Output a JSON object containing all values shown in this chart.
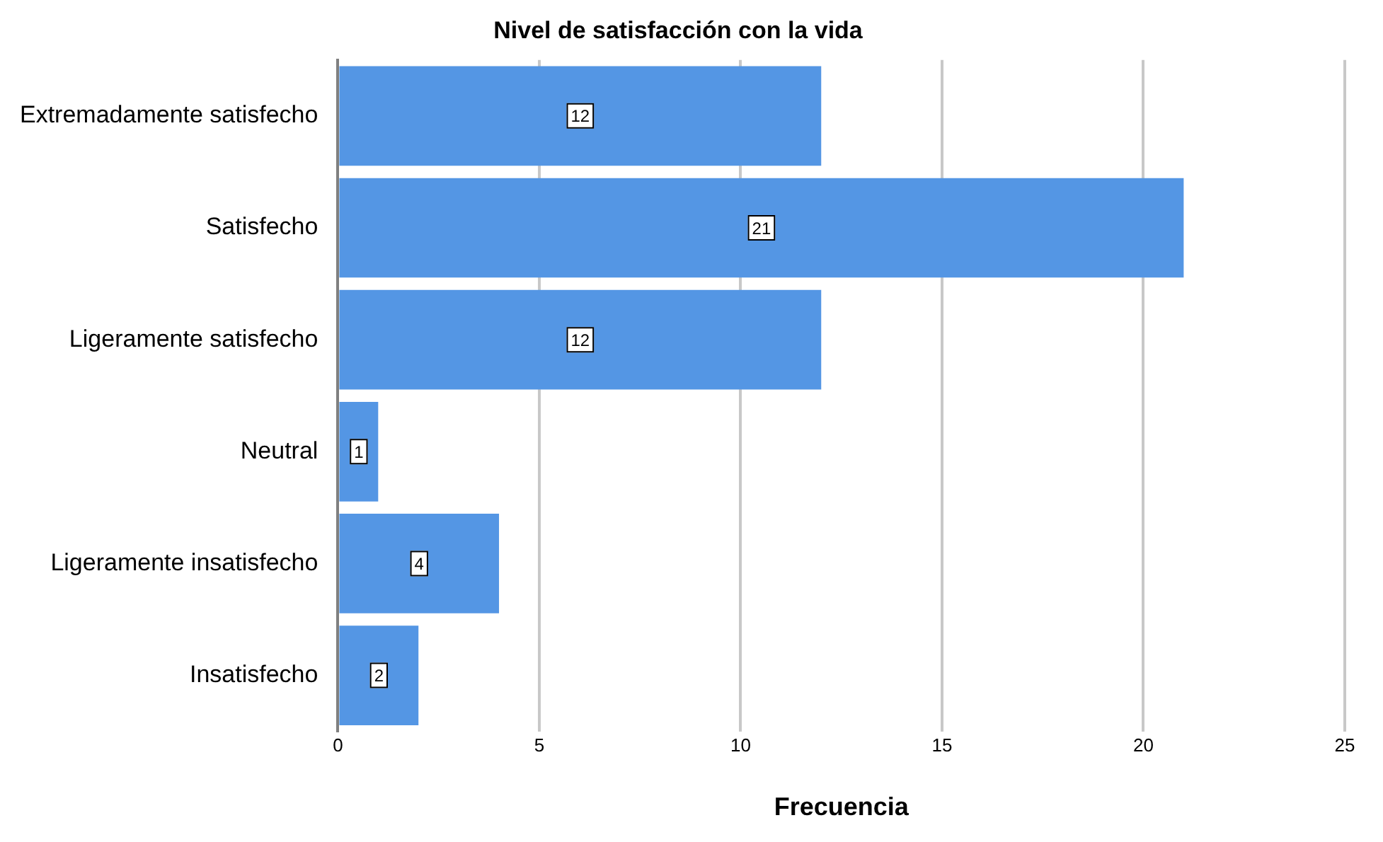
{
  "chart_data": {
    "type": "bar",
    "orientation": "horizontal",
    "title": "Nivel de satisfacción con la vida",
    "xlabel": "Frecuencia",
    "categories": [
      "Extremadamente satisfecho",
      "Satisfecho",
      "Ligeramente satisfecho",
      "Neutral",
      "Ligeramente insatisfecho",
      "Insatisfecho"
    ],
    "values": [
      12,
      21,
      12,
      1,
      4,
      2
    ],
    "color": "#5496e4",
    "xlim": [
      0,
      25
    ],
    "xticks": [
      0,
      5,
      10,
      15,
      20,
      25
    ],
    "grid": "x",
    "data_labels": true,
    "legend": false
  }
}
